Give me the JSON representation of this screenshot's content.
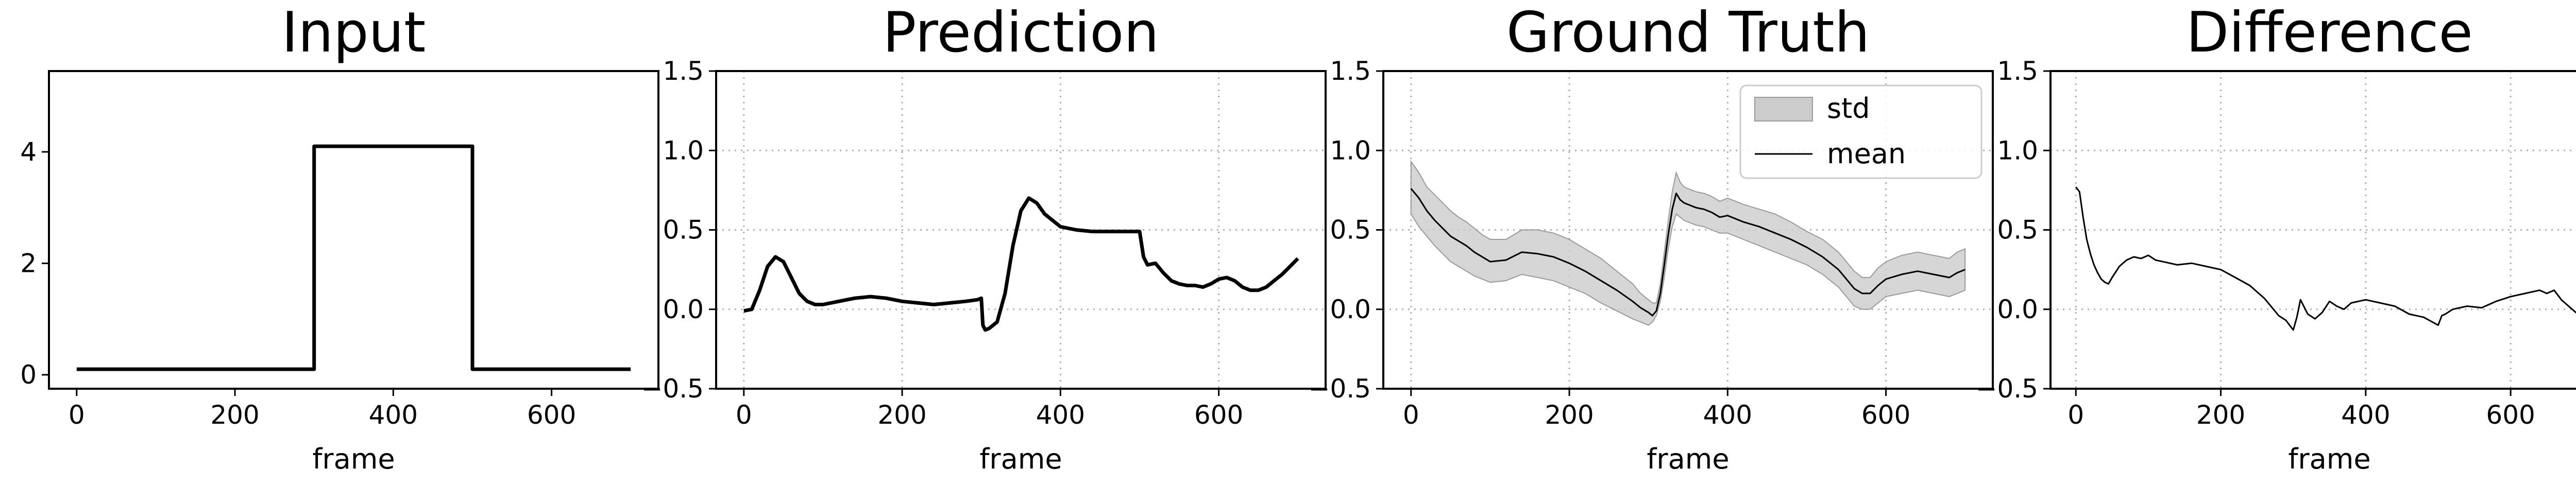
{
  "chart_data": [
    {
      "type": "line",
      "title": "Input",
      "xlabel": "frame",
      "ylabel": "",
      "xlim": [
        -35,
        735
      ],
      "ylim": [
        -0.25,
        5.45
      ],
      "xticks": [
        0,
        200,
        400,
        600
      ],
      "yticks": [
        0,
        2,
        4
      ],
      "grid": false,
      "series": [
        {
          "x": [
            0,
            300,
            300,
            500,
            500,
            700
          ],
          "y": [
            0.1,
            0.1,
            4.1,
            4.1,
            0.1,
            0.1
          ]
        }
      ]
    },
    {
      "type": "line",
      "title": "Prediction",
      "xlabel": "frame",
      "ylabel": "",
      "xlim": [
        -35,
        735
      ],
      "ylim": [
        -0.5,
        1.5
      ],
      "xticks": [
        0,
        200,
        400,
        600
      ],
      "yticks": [
        -0.5,
        0.0,
        0.5,
        1.0,
        1.5
      ],
      "grid": true,
      "series": [
        {
          "x": [
            0,
            10,
            20,
            30,
            40,
            50,
            60,
            70,
            80,
            90,
            100,
            120,
            140,
            160,
            180,
            200,
            220,
            240,
            260,
            280,
            295,
            300,
            302,
            305,
            310,
            320,
            330,
            340,
            350,
            360,
            370,
            380,
            400,
            420,
            440,
            460,
            480,
            495,
            500,
            505,
            510,
            520,
            530,
            540,
            550,
            560,
            570,
            580,
            590,
            600,
            610,
            620,
            630,
            640,
            650,
            660,
            670,
            680,
            690,
            700
          ],
          "y": [
            -0.01,
            0.0,
            0.12,
            0.27,
            0.33,
            0.3,
            0.2,
            0.1,
            0.05,
            0.03,
            0.03,
            0.05,
            0.07,
            0.08,
            0.07,
            0.05,
            0.04,
            0.03,
            0.04,
            0.05,
            0.06,
            0.07,
            -0.1,
            -0.13,
            -0.12,
            -0.08,
            0.1,
            0.4,
            0.62,
            0.7,
            0.67,
            0.6,
            0.52,
            0.5,
            0.49,
            0.49,
            0.49,
            0.49,
            0.49,
            0.33,
            0.28,
            0.29,
            0.23,
            0.18,
            0.16,
            0.15,
            0.15,
            0.14,
            0.16,
            0.19,
            0.2,
            0.18,
            0.14,
            0.12,
            0.12,
            0.14,
            0.18,
            0.22,
            0.27,
            0.32
          ]
        }
      ]
    },
    {
      "type": "area",
      "title": "Ground Truth",
      "xlabel": "frame",
      "ylabel": "",
      "xlim": [
        -35,
        735
      ],
      "ylim": [
        -0.5,
        1.5
      ],
      "xticks": [
        0,
        200,
        400,
        600
      ],
      "yticks": [
        -0.5,
        0.0,
        0.5,
        1.0,
        1.5
      ],
      "grid": true,
      "legend_position": "top-right",
      "series": [
        {
          "name": "std",
          "x": [
            0,
            10,
            20,
            30,
            40,
            50,
            60,
            70,
            80,
            90,
            100,
            120,
            140,
            160,
            180,
            200,
            220,
            240,
            260,
            280,
            290,
            300,
            305,
            310,
            315,
            320,
            325,
            330,
            335,
            340,
            345,
            350,
            360,
            370,
            380,
            390,
            400,
            420,
            440,
            460,
            480,
            500,
            520,
            540,
            550,
            560,
            570,
            580,
            590,
            600,
            620,
            640,
            660,
            680,
            690,
            700
          ],
          "upper": [
            0.93,
            0.86,
            0.77,
            0.72,
            0.67,
            0.62,
            0.58,
            0.55,
            0.51,
            0.47,
            0.44,
            0.44,
            0.5,
            0.5,
            0.48,
            0.44,
            0.38,
            0.32,
            0.24,
            0.16,
            0.1,
            0.06,
            0.04,
            0.04,
            0.16,
            0.36,
            0.56,
            0.74,
            0.86,
            0.8,
            0.77,
            0.76,
            0.74,
            0.73,
            0.71,
            0.68,
            0.7,
            0.66,
            0.63,
            0.6,
            0.55,
            0.49,
            0.44,
            0.36,
            0.3,
            0.24,
            0.2,
            0.2,
            0.26,
            0.3,
            0.34,
            0.36,
            0.34,
            0.32,
            0.36,
            0.38
          ],
          "lower": [
            0.6,
            0.52,
            0.46,
            0.4,
            0.35,
            0.3,
            0.27,
            0.24,
            0.21,
            0.19,
            0.17,
            0.18,
            0.22,
            0.2,
            0.18,
            0.14,
            0.1,
            0.04,
            -0.01,
            -0.06,
            -0.08,
            -0.1,
            -0.08,
            -0.04,
            0.05,
            0.2,
            0.38,
            0.52,
            0.6,
            0.58,
            0.56,
            0.55,
            0.53,
            0.52,
            0.5,
            0.48,
            0.48,
            0.44,
            0.4,
            0.36,
            0.32,
            0.28,
            0.22,
            0.14,
            0.08,
            0.02,
            0.0,
            0.0,
            0.04,
            0.08,
            0.1,
            0.12,
            0.1,
            0.08,
            0.1,
            0.12
          ]
        },
        {
          "name": "mean",
          "x": [
            0,
            10,
            20,
            30,
            40,
            50,
            60,
            70,
            80,
            90,
            100,
            120,
            140,
            160,
            180,
            200,
            220,
            240,
            260,
            280,
            290,
            300,
            305,
            310,
            315,
            320,
            325,
            330,
            335,
            340,
            345,
            350,
            360,
            370,
            380,
            390,
            400,
            420,
            440,
            460,
            480,
            500,
            520,
            540,
            550,
            560,
            570,
            580,
            590,
            600,
            620,
            640,
            660,
            680,
            690,
            700
          ],
          "y": [
            0.76,
            0.7,
            0.62,
            0.56,
            0.51,
            0.46,
            0.43,
            0.4,
            0.36,
            0.33,
            0.3,
            0.31,
            0.36,
            0.35,
            0.33,
            0.29,
            0.24,
            0.18,
            0.12,
            0.05,
            0.01,
            -0.02,
            -0.04,
            -0.01,
            0.1,
            0.28,
            0.47,
            0.63,
            0.73,
            0.69,
            0.67,
            0.66,
            0.64,
            0.63,
            0.61,
            0.58,
            0.59,
            0.55,
            0.52,
            0.48,
            0.44,
            0.39,
            0.33,
            0.25,
            0.19,
            0.13,
            0.1,
            0.1,
            0.15,
            0.19,
            0.22,
            0.24,
            0.22,
            0.2,
            0.23,
            0.25
          ]
        }
      ]
    },
    {
      "type": "line",
      "title": "Difference",
      "xlabel": "frame",
      "ylabel": "",
      "xlim": [
        -35,
        735
      ],
      "ylim": [
        -0.5,
        1.5
      ],
      "xticks": [
        0,
        200,
        400,
        600
      ],
      "yticks": [
        -0.5,
        0.0,
        0.5,
        1.0,
        1.5
      ],
      "grid": true,
      "series": [
        {
          "x": [
            0,
            5,
            10,
            15,
            20,
            25,
            30,
            35,
            40,
            45,
            50,
            60,
            70,
            80,
            90,
            100,
            110,
            120,
            140,
            160,
            180,
            200,
            220,
            240,
            260,
            280,
            290,
            295,
            300,
            305,
            310,
            320,
            330,
            340,
            350,
            360,
            370,
            380,
            400,
            420,
            440,
            460,
            480,
            500,
            505,
            510,
            520,
            540,
            560,
            580,
            600,
            620,
            640,
            650,
            660,
            670,
            680,
            690,
            700
          ],
          "y": [
            0.77,
            0.74,
            0.58,
            0.44,
            0.35,
            0.28,
            0.23,
            0.19,
            0.17,
            0.16,
            0.2,
            0.27,
            0.31,
            0.33,
            0.32,
            0.34,
            0.31,
            0.3,
            0.28,
            0.29,
            0.27,
            0.25,
            0.2,
            0.15,
            0.07,
            -0.04,
            -0.07,
            -0.1,
            -0.13,
            -0.05,
            0.06,
            -0.03,
            -0.06,
            -0.02,
            0.05,
            0.02,
            0.0,
            0.04,
            0.06,
            0.04,
            0.02,
            -0.03,
            -0.05,
            -0.1,
            -0.04,
            -0.03,
            0.0,
            0.02,
            0.01,
            0.05,
            0.08,
            0.1,
            0.12,
            0.1,
            0.12,
            0.06,
            0.02,
            -0.02,
            -0.05
          ]
        }
      ]
    }
  ]
}
